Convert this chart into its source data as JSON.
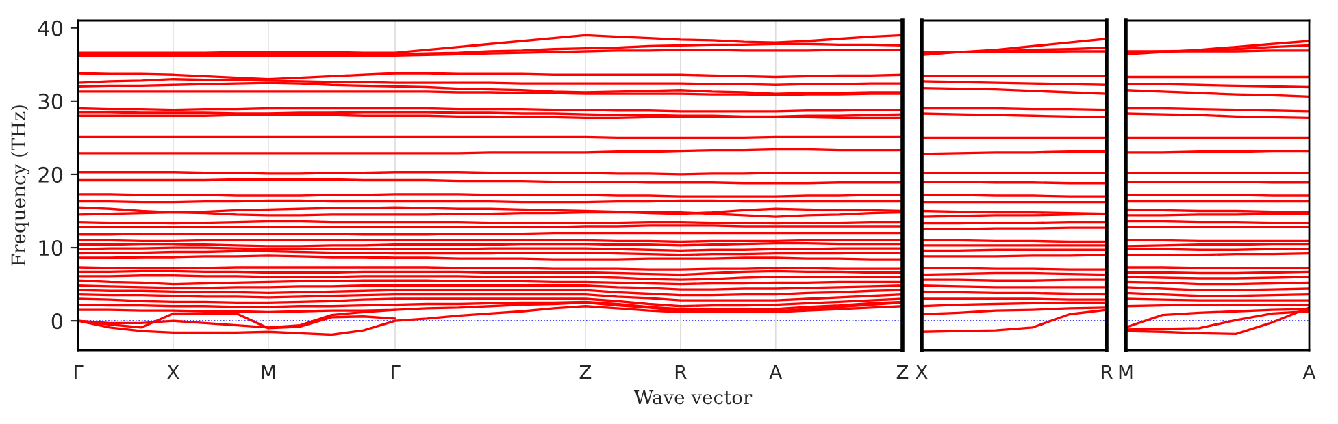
{
  "chart_data": [
    {
      "type": "line",
      "xlabel": "Wave vector",
      "ylabel": "Frequency (THz)",
      "categories": [
        "Γ",
        null,
        null,
        "X",
        null,
        null,
        "M",
        null,
        null,
        null,
        "Γ",
        null,
        null,
        null,
        null,
        null,
        "Z",
        null,
        null,
        "R",
        null,
        null,
        "A",
        null,
        null,
        null,
        "Z"
      ],
      "ylim": [
        -4,
        41
      ],
      "yticks": [
        0,
        10,
        20,
        30,
        40
      ],
      "grid": "x",
      "ref_lines": [
        {
          "axis": "y",
          "value": 0,
          "color": "#0000ff",
          "line_style": "dotted"
        }
      ],
      "series": [
        {
          "color": "#ff0000",
          "values": [
            36.6,
            36.6,
            36.6,
            36.6,
            36.6,
            36.7,
            36.7,
            36.7,
            36.7,
            36.6,
            36.6,
            37.0,
            37.4,
            37.8,
            38.2,
            38.6,
            39.0,
            38.8,
            38.6,
            38.4,
            38.3,
            38.1,
            38.0,
            38.2,
            38.5,
            38.8,
            39.0
          ]
        },
        {
          "color": "#ff0000",
          "values": [
            36.4,
            36.4,
            36.4,
            36.4,
            36.4,
            36.4,
            36.4,
            36.4,
            36.4,
            36.4,
            36.4,
            36.5,
            36.6,
            36.8,
            36.9,
            37.1,
            37.2,
            37.3,
            37.5,
            37.6,
            37.7,
            37.7,
            37.8,
            37.8,
            37.7,
            37.7,
            37.6
          ]
        },
        {
          "color": "#ff0000",
          "values": [
            36.2,
            36.2,
            36.2,
            36.2,
            36.2,
            36.2,
            36.2,
            36.2,
            36.2,
            36.2,
            36.2,
            36.3,
            36.4,
            36.5,
            36.6,
            36.7,
            36.8,
            36.9,
            36.9,
            37.0,
            37.0,
            36.9,
            36.9,
            36.9,
            37.0,
            37.0,
            37.0
          ]
        },
        {
          "color": "#ff0000",
          "values": [
            33.8,
            33.7,
            33.7,
            33.6,
            33.4,
            33.2,
            33.0,
            33.2,
            33.4,
            33.6,
            33.8,
            33.8,
            33.7,
            33.7,
            33.7,
            33.6,
            33.6,
            33.6,
            33.6,
            33.6,
            33.5,
            33.4,
            33.3,
            33.4,
            33.5,
            33.5,
            33.6
          ]
        },
        {
          "color": "#ff0000",
          "values": [
            32.5,
            32.7,
            32.8,
            33.0,
            32.9,
            32.9,
            32.8,
            32.7,
            32.6,
            32.6,
            32.5,
            32.5,
            32.5,
            32.5,
            32.4,
            32.4,
            32.4,
            32.4,
            32.4,
            32.4,
            32.3,
            32.3,
            32.2,
            32.3,
            32.3,
            32.4,
            32.4
          ]
        },
        {
          "color": "#ff0000",
          "values": [
            32.0,
            32.1,
            32.1,
            32.2,
            32.3,
            32.4,
            32.5,
            32.4,
            32.2,
            32.1,
            32.0,
            31.9,
            31.7,
            31.6,
            31.5,
            31.3,
            31.2,
            31.3,
            31.4,
            31.5,
            31.3,
            31.2,
            31.0,
            31.1,
            31.1,
            31.2,
            31.2
          ]
        },
        {
          "color": "#ff0000",
          "values": [
            31.3,
            31.3,
            31.3,
            31.3,
            31.3,
            31.3,
            31.3,
            31.3,
            31.3,
            31.3,
            31.3,
            31.3,
            31.2,
            31.2,
            31.1,
            31.1,
            31.0,
            31.0,
            31.0,
            31.0,
            30.9,
            30.9,
            30.8,
            30.9,
            30.9,
            31.0,
            31.0
          ]
        },
        {
          "color": "#ff0000",
          "values": [
            29.0,
            28.9,
            28.9,
            28.8,
            28.9,
            28.9,
            29.0,
            29.0,
            29.0,
            29.0,
            29.0,
            29.0,
            28.9,
            28.9,
            28.9,
            28.8,
            28.8,
            28.7,
            28.7,
            28.6,
            28.6,
            28.6,
            28.6,
            28.7,
            28.7,
            28.8,
            28.8
          ]
        },
        {
          "color": "#ff0000",
          "values": [
            28.5,
            28.5,
            28.4,
            28.4,
            28.4,
            28.3,
            28.3,
            28.4,
            28.4,
            28.5,
            28.5,
            28.5,
            28.4,
            28.4,
            28.3,
            28.3,
            28.2,
            28.1,
            28.1,
            28.0,
            28.0,
            27.9,
            27.9,
            28.0,
            28.0,
            28.1,
            28.2
          ]
        },
        {
          "color": "#ff0000",
          "values": [
            28.0,
            28.0,
            28.0,
            28.0,
            28.0,
            28.1,
            28.1,
            28.1,
            28.1,
            28.0,
            28.0,
            28.0,
            27.9,
            27.9,
            27.8,
            27.8,
            27.7,
            27.7,
            27.8,
            27.8,
            27.8,
            27.8,
            27.8,
            27.8,
            27.7,
            27.7,
            27.7
          ]
        },
        {
          "color": "#ff0000",
          "values": [
            25.1,
            25.1,
            25.1,
            25.1,
            25.1,
            25.1,
            25.1,
            25.1,
            25.1,
            25.1,
            25.1,
            25.1,
            25.1,
            25.1,
            25.1,
            25.1,
            25.1,
            25.0,
            25.0,
            25.0,
            25.0,
            25.0,
            25.1,
            25.1,
            25.1,
            25.1,
            25.1
          ]
        },
        {
          "color": "#ff0000",
          "values": [
            22.9,
            22.9,
            22.9,
            22.9,
            22.9,
            22.9,
            22.9,
            22.9,
            22.9,
            22.9,
            22.9,
            22.9,
            22.9,
            23.0,
            23.0,
            23.0,
            23.0,
            23.1,
            23.1,
            23.2,
            23.3,
            23.3,
            23.4,
            23.4,
            23.3,
            23.3,
            23.3
          ]
        },
        {
          "color": "#ff0000",
          "values": [
            20.3,
            20.3,
            20.3,
            20.3,
            20.2,
            20.2,
            20.1,
            20.1,
            20.2,
            20.2,
            20.3,
            20.3,
            20.3,
            20.2,
            20.2,
            20.2,
            20.2,
            20.1,
            20.1,
            20.0,
            20.1,
            20.1,
            20.2,
            20.2,
            20.2,
            20.2,
            20.2
          ]
        },
        {
          "color": "#ff0000",
          "values": [
            19.2,
            19.2,
            19.2,
            19.2,
            19.2,
            19.3,
            19.3,
            19.3,
            19.3,
            19.2,
            19.2,
            19.2,
            19.1,
            19.1,
            19.1,
            19.0,
            19.0,
            19.0,
            18.9,
            18.9,
            18.9,
            18.8,
            18.8,
            18.8,
            18.9,
            18.9,
            18.9
          ]
        },
        {
          "color": "#ff0000",
          "values": [
            17.3,
            17.3,
            17.2,
            17.2,
            17.2,
            17.1,
            17.1,
            17.1,
            17.2,
            17.2,
            17.3,
            17.3,
            17.3,
            17.2,
            17.2,
            17.2,
            17.2,
            17.1,
            17.1,
            17.0,
            17.0,
            17.0,
            17.0,
            17.1,
            17.1,
            17.2,
            17.2
          ]
        },
        {
          "color": "#ff0000",
          "values": [
            16.3,
            16.3,
            16.2,
            16.2,
            16.3,
            16.3,
            16.4,
            16.4,
            16.3,
            16.3,
            16.3,
            16.3,
            16.3,
            16.3,
            16.2,
            16.2,
            16.2,
            16.3,
            16.3,
            16.4,
            16.4,
            16.3,
            16.3,
            16.3,
            16.3,
            16.3,
            16.3
          ]
        },
        {
          "color": "#ff0000",
          "values": [
            15.5,
            15.3,
            15.0,
            14.8,
            14.9,
            15.1,
            15.2,
            15.3,
            15.4,
            15.4,
            15.5,
            15.4,
            15.3,
            15.3,
            15.2,
            15.1,
            15.0,
            14.9,
            14.7,
            14.6,
            14.8,
            15.1,
            15.3,
            15.2,
            15.1,
            15.1,
            15.0
          ]
        },
        {
          "color": "#ff0000",
          "values": [
            14.5,
            14.6,
            14.7,
            14.8,
            14.7,
            14.5,
            14.4,
            14.4,
            14.5,
            14.5,
            14.5,
            14.5,
            14.6,
            14.6,
            14.7,
            14.7,
            14.8,
            14.8,
            14.8,
            14.8,
            14.6,
            14.4,
            14.2,
            14.4,
            14.5,
            14.7,
            14.8
          ]
        },
        {
          "color": "#ff0000",
          "values": [
            13.5,
            13.4,
            13.4,
            13.3,
            13.4,
            13.5,
            13.6,
            13.6,
            13.5,
            13.5,
            13.5,
            13.5,
            13.5,
            13.4,
            13.4,
            13.4,
            13.4,
            13.4,
            13.5,
            13.5,
            13.4,
            13.4,
            13.3,
            13.4,
            13.4,
            13.5,
            13.5
          ]
        },
        {
          "color": "#ff0000",
          "values": [
            12.8,
            12.8,
            12.8,
            12.8,
            12.8,
            12.8,
            12.8,
            12.8,
            12.8,
            12.8,
            12.8,
            12.8,
            12.8,
            12.8,
            12.8,
            12.8,
            12.9,
            12.9,
            13.0,
            13.0,
            13.0,
            12.9,
            12.9,
            12.9,
            12.9,
            12.9,
            12.9
          ]
        },
        {
          "color": "#ff0000",
          "values": [
            11.8,
            11.8,
            11.9,
            11.9,
            11.9,
            11.9,
            11.9,
            11.9,
            11.9,
            11.8,
            11.8,
            11.8,
            11.9,
            11.9,
            11.9,
            12.0,
            12.0,
            12.0,
            12.0,
            12.0,
            12.0,
            12.0,
            12.0,
            12.0,
            12.0,
            12.0,
            12.0
          ]
        },
        {
          "color": "#ff0000",
          "values": [
            11.0,
            11.0,
            10.9,
            10.9,
            11.0,
            11.0,
            11.0,
            11.0,
            11.0,
            11.0,
            11.0,
            11.0,
            11.0,
            11.0,
            11.0,
            11.0,
            11.0,
            10.9,
            10.9,
            10.8,
            10.9,
            10.9,
            10.9,
            11.0,
            11.0,
            11.0,
            11.0
          ]
        },
        {
          "color": "#ff0000",
          "values": [
            10.4,
            10.4,
            10.5,
            10.5,
            10.4,
            10.3,
            10.2,
            10.2,
            10.3,
            10.3,
            10.4,
            10.4,
            10.4,
            10.4,
            10.5,
            10.5,
            10.5,
            10.4,
            10.4,
            10.3,
            10.4,
            10.5,
            10.6,
            10.6,
            10.5,
            10.5,
            10.5
          ]
        },
        {
          "color": "#ff0000",
          "values": [
            9.8,
            9.9,
            9.9,
            10.0,
            10.0,
            9.9,
            9.8,
            9.8,
            9.8,
            9.8,
            9.8,
            9.8,
            9.8,
            9.9,
            9.9,
            9.9,
            9.9,
            9.8,
            9.7,
            9.6,
            9.7,
            9.7,
            9.8,
            9.8,
            9.9,
            9.9,
            9.9
          ]
        },
        {
          "color": "#ff0000",
          "values": [
            9.2,
            9.3,
            9.3,
            9.4,
            9.4,
            9.5,
            9.5,
            9.4,
            9.3,
            9.3,
            9.2,
            9.2,
            9.2,
            9.2,
            9.3,
            9.3,
            9.3,
            9.2,
            9.1,
            9.0,
            9.1,
            9.1,
            9.2,
            9.2,
            9.2,
            9.3,
            9.3
          ]
        },
        {
          "color": "#ff0000",
          "values": [
            8.6,
            8.6,
            8.7,
            8.7,
            8.8,
            8.8,
            8.9,
            8.8,
            8.7,
            8.7,
            8.6,
            8.6,
            8.5,
            8.5,
            8.5,
            8.4,
            8.4,
            8.4,
            8.5,
            8.5,
            8.5,
            8.6,
            8.6,
            8.5,
            8.5,
            8.4,
            8.4
          ]
        },
        {
          "color": "#ff0000",
          "values": [
            7.3,
            7.2,
            7.2,
            7.2,
            7.2,
            7.3,
            7.3,
            7.3,
            7.3,
            7.3,
            7.3,
            7.3,
            7.2,
            7.2,
            7.2,
            7.1,
            7.1,
            7.1,
            7.0,
            7.0,
            7.1,
            7.1,
            7.2,
            7.2,
            7.1,
            7.1,
            7.1
          ]
        },
        {
          "color": "#ff0000",
          "values": [
            6.7,
            6.7,
            6.8,
            6.8,
            6.7,
            6.7,
            6.6,
            6.6,
            6.6,
            6.7,
            6.7,
            6.7,
            6.7,
            6.6,
            6.6,
            6.6,
            6.6,
            6.5,
            6.4,
            6.3,
            6.5,
            6.7,
            6.8,
            6.7,
            6.7,
            6.6,
            6.6
          ]
        },
        {
          "color": "#ff0000",
          "values": [
            6.1,
            6.1,
            6.2,
            6.2,
            6.1,
            6.1,
            6.0,
            6.0,
            6.0,
            6.1,
            6.1,
            6.1,
            6.1,
            6.0,
            6.0,
            6.0,
            6.0,
            5.9,
            5.7,
            5.6,
            5.7,
            5.9,
            6.0,
            6.0,
            6.0,
            6.0,
            6.0
          ]
        },
        {
          "color": "#ff0000",
          "values": [
            5.5,
            5.3,
            5.2,
            5.0,
            5.1,
            5.2,
            5.3,
            5.4,
            5.4,
            5.5,
            5.5,
            5.5,
            5.4,
            5.4,
            5.4,
            5.3,
            5.3,
            5.2,
            5.1,
            5.0,
            5.1,
            5.1,
            5.2,
            5.2,
            5.3,
            5.3,
            5.3
          ]
        },
        {
          "color": "#ff0000",
          "values": [
            4.8,
            4.7,
            4.6,
            4.5,
            4.5,
            4.6,
            4.6,
            4.7,
            4.7,
            4.8,
            4.8,
            4.8,
            4.8,
            4.8,
            4.8,
            4.8,
            4.8,
            4.6,
            4.5,
            4.3,
            4.3,
            4.4,
            4.4,
            4.5,
            4.6,
            4.7,
            4.8
          ]
        },
        {
          "color": "#ff0000",
          "values": [
            4.2,
            4.1,
            4.1,
            4.0,
            3.9,
            3.9,
            3.8,
            3.9,
            4.0,
            4.1,
            4.2,
            4.2,
            4.2,
            4.2,
            4.2,
            4.2,
            4.2,
            3.9,
            3.7,
            3.5,
            3.5,
            3.6,
            3.6,
            3.8,
            3.9,
            4.1,
            4.2
          ]
        },
        {
          "color": "#ff0000",
          "values": [
            3.6,
            3.5,
            3.5,
            3.4,
            3.3,
            3.3,
            3.2,
            3.3,
            3.4,
            3.5,
            3.6,
            3.6,
            3.6,
            3.6,
            3.6,
            3.6,
            3.6,
            3.3,
            3.1,
            2.8,
            2.8,
            2.8,
            2.8,
            3.0,
            3.2,
            3.4,
            3.6
          ]
        },
        {
          "color": "#ff0000",
          "values": [
            3.0,
            2.9,
            2.7,
            2.6,
            2.6,
            2.5,
            2.5,
            2.6,
            2.7,
            2.9,
            3.0,
            3.0,
            3.0,
            3.0,
            3.0,
            3.0,
            3.0,
            2.7,
            2.3,
            2.0,
            2.1,
            2.1,
            2.2,
            2.4,
            2.6,
            2.8,
            3.0
          ]
        },
        {
          "color": "#ff0000",
          "values": [
            2.2,
            2.1,
            2.1,
            2.0,
            2.0,
            1.9,
            1.9,
            2.0,
            2.0,
            2.1,
            2.2,
            2.3,
            2.3,
            2.4,
            2.5,
            2.5,
            2.6,
            2.3,
            1.9,
            1.6,
            1.6,
            1.6,
            1.6,
            1.9,
            2.1,
            2.4,
            2.6
          ]
        },
        {
          "color": "#ff0000",
          "values": [
            1.5,
            1.5,
            1.4,
            1.4,
            1.3,
            1.3,
            1.2,
            1.3,
            1.4,
            1.4,
            1.5,
            1.7,
            1.8,
            2.0,
            2.2,
            2.3,
            2.5,
            2.1,
            1.8,
            1.4,
            1.4,
            1.3,
            1.3,
            1.6,
            1.9,
            2.2,
            2.5
          ]
        },
        {
          "color": "#ff0000",
          "values": [
            0,
            -0.9,
            -1.4,
            -1.6,
            -1.6,
            -1.6,
            -1.5,
            -1.7,
            -1.9,
            -1.3,
            0,
            0.3,
            0.7,
            1.0,
            1.3,
            1.7,
            2.0,
            1.7,
            1.4,
            1.2,
            1.2,
            1.2,
            1.2,
            1.4,
            1.6,
            1.8,
            2.0
          ]
        },
        {
          "color": "#ff0000",
          "values": [
            0,
            -0.5,
            -0.9,
            1.0,
            1.0,
            1.0,
            -1.0,
            -0.8,
            0.5,
            0.6,
            0.3,
            null,
            null,
            null,
            null,
            null,
            null,
            null,
            null,
            null,
            null,
            null,
            null,
            null,
            null,
            null,
            null
          ]
        },
        {
          "color": "#ff0000",
          "values": [
            0,
            -0.3,
            -0.3,
            0.0,
            -0.3,
            -0.6,
            -0.9,
            -0.6,
            0.8,
            1.2,
            1.5,
            null,
            null,
            null,
            null,
            null,
            null,
            null,
            null,
            null,
            null,
            null,
            null,
            null,
            null,
            null,
            null
          ]
        }
      ]
    },
    {
      "type": "line",
      "categories": [
        "X",
        null,
        null,
        null,
        null,
        "R"
      ],
      "ylim": [
        -4,
        41
      ],
      "yticks": [
        0,
        10,
        20,
        30,
        40
      ],
      "tick_labels": "x",
      "ref_lines": [
        {
          "axis": "y",
          "value": 0,
          "color": "#0000ff",
          "line_style": "dotted"
        }
      ],
      "series": [
        {
          "color": "#ff0000",
          "values": [
            36.3,
            36.7,
            37.0,
            37.5,
            38.0,
            38.5
          ]
        },
        {
          "color": "#ff0000",
          "values": [
            36.5,
            36.7,
            36.8,
            37.0,
            37.1,
            37.3
          ]
        },
        {
          "color": "#ff0000",
          "values": [
            36.7,
            36.7,
            36.7,
            36.7,
            36.8,
            36.8
          ]
        },
        {
          "color": "#ff0000",
          "values": [
            33.4,
            33.4,
            33.4,
            33.4,
            33.4,
            33.4
          ]
        },
        {
          "color": "#ff0000",
          "values": [
            32.7,
            32.6,
            32.5,
            32.4,
            32.3,
            32.2
          ]
        },
        {
          "color": "#ff0000",
          "values": [
            31.8,
            31.7,
            31.6,
            31.4,
            31.2,
            31.0
          ]
        },
        {
          "color": "#ff0000",
          "values": [
            29.0,
            29.0,
            29.0,
            28.9,
            28.9,
            28.8
          ]
        },
        {
          "color": "#ff0000",
          "values": [
            28.3,
            28.2,
            28.1,
            28.0,
            27.9,
            27.8
          ]
        },
        {
          "color": "#ff0000",
          "values": [
            25.0,
            25.0,
            25.0,
            25.0,
            25.0,
            25.0
          ]
        },
        {
          "color": "#ff0000",
          "values": [
            22.8,
            22.9,
            23.0,
            23.0,
            23.1,
            23.1
          ]
        },
        {
          "color": "#ff0000",
          "values": [
            20.2,
            20.2,
            20.2,
            20.2,
            20.2,
            20.2
          ]
        },
        {
          "color": "#ff0000",
          "values": [
            19.0,
            19.0,
            18.9,
            18.9,
            18.8,
            18.8
          ]
        },
        {
          "color": "#ff0000",
          "values": [
            17.2,
            17.2,
            17.1,
            17.1,
            17.0,
            17.0
          ]
        },
        {
          "color": "#ff0000",
          "values": [
            16.2,
            16.2,
            16.2,
            16.2,
            16.2,
            16.2
          ]
        },
        {
          "color": "#ff0000",
          "values": [
            15.0,
            14.9,
            14.8,
            14.8,
            14.7,
            14.6
          ]
        },
        {
          "color": "#ff0000",
          "values": [
            14.2,
            14.3,
            14.4,
            14.4,
            14.5,
            14.6
          ]
        },
        {
          "color": "#ff0000",
          "values": [
            13.3,
            13.3,
            13.4,
            13.4,
            13.5,
            13.5
          ]
        },
        {
          "color": "#ff0000",
          "values": [
            12.5,
            12.5,
            12.6,
            12.6,
            12.7,
            12.7
          ]
        },
        {
          "color": "#ff0000",
          "values": [
            11.0,
            11.0,
            10.9,
            10.9,
            10.8,
            10.8
          ]
        },
        {
          "color": "#ff0000",
          "values": [
            10.3,
            10.3,
            10.3,
            10.3,
            10.3,
            10.3
          ]
        },
        {
          "color": "#ff0000",
          "values": [
            9.6,
            9.6,
            9.7,
            9.7,
            9.7,
            9.7
          ]
        },
        {
          "color": "#ff0000",
          "values": [
            8.8,
            8.8,
            8.8,
            8.9,
            8.9,
            9.0
          ]
        },
        {
          "color": "#ff0000",
          "values": [
            7.2,
            7.2,
            7.1,
            7.1,
            7.0,
            7.0
          ]
        },
        {
          "color": "#ff0000",
          "values": [
            6.3,
            6.4,
            6.5,
            6.5,
            6.4,
            6.3
          ]
        },
        {
          "color": "#ff0000",
          "values": [
            5.6,
            5.6,
            5.5,
            5.5,
            5.6,
            5.6
          ]
        },
        {
          "color": "#ff0000",
          "values": [
            4.8,
            4.7,
            4.6,
            4.6,
            4.6,
            4.6
          ]
        },
        {
          "color": "#ff0000",
          "values": [
            4.0,
            3.9,
            3.8,
            3.8,
            3.7,
            3.6
          ]
        },
        {
          "color": "#ff0000",
          "values": [
            3.0,
            3.0,
            3.0,
            3.0,
            2.9,
            2.9
          ]
        },
        {
          "color": "#ff0000",
          "values": [
            2.0,
            2.2,
            2.3,
            2.4,
            2.5,
            2.5
          ]
        },
        {
          "color": "#ff0000",
          "values": [
            0.9,
            1.1,
            1.4,
            1.5,
            1.7,
            1.8
          ]
        },
        {
          "color": "#ff0000",
          "values": [
            -1.5,
            -1.4,
            -1.3,
            -0.9,
            0.9,
            1.5
          ]
        }
      ]
    },
    {
      "type": "line",
      "categories": [
        "M",
        null,
        null,
        null,
        null,
        "A"
      ],
      "ylim": [
        -4,
        41
      ],
      "yticks": [
        0,
        10,
        20,
        30,
        40
      ],
      "tick_labels": "x",
      "ref_lines": [
        {
          "axis": "y",
          "value": 0,
          "color": "#0000ff",
          "line_style": "dotted"
        }
      ],
      "series": [
        {
          "color": "#ff0000",
          "values": [
            36.4,
            36.7,
            37.0,
            37.4,
            37.8,
            38.2
          ]
        },
        {
          "color": "#ff0000",
          "values": [
            36.6,
            36.8,
            36.9,
            37.1,
            37.4,
            37.6
          ]
        },
        {
          "color": "#ff0000",
          "values": [
            36.8,
            36.8,
            36.8,
            36.8,
            36.9,
            36.9
          ]
        },
        {
          "color": "#ff0000",
          "values": [
            33.3,
            33.3,
            33.3,
            33.3,
            33.3,
            33.3
          ]
        },
        {
          "color": "#ff0000",
          "values": [
            32.3,
            32.3,
            32.2,
            32.1,
            32.0,
            31.9
          ]
        },
        {
          "color": "#ff0000",
          "values": [
            31.5,
            31.3,
            31.1,
            30.9,
            30.8,
            30.6
          ]
        },
        {
          "color": "#ff0000",
          "values": [
            29.0,
            29.0,
            28.9,
            28.8,
            28.7,
            28.6
          ]
        },
        {
          "color": "#ff0000",
          "values": [
            28.3,
            28.2,
            28.1,
            27.9,
            27.8,
            27.7
          ]
        },
        {
          "color": "#ff0000",
          "values": [
            25.0,
            25.0,
            25.0,
            25.0,
            25.0,
            25.0
          ]
        },
        {
          "color": "#ff0000",
          "values": [
            23.0,
            23.0,
            23.1,
            23.1,
            23.2,
            23.2
          ]
        },
        {
          "color": "#ff0000",
          "values": [
            20.2,
            20.2,
            20.2,
            20.2,
            20.2,
            20.2
          ]
        },
        {
          "color": "#ff0000",
          "values": [
            19.0,
            19.0,
            19.0,
            19.0,
            18.9,
            18.9
          ]
        },
        {
          "color": "#ff0000",
          "values": [
            17.2,
            17.2,
            17.2,
            17.2,
            17.1,
            17.1
          ]
        },
        {
          "color": "#ff0000",
          "values": [
            16.3,
            16.3,
            16.3,
            16.3,
            16.3,
            16.3
          ]
        },
        {
          "color": "#ff0000",
          "values": [
            15.2,
            15.1,
            15.0,
            15.0,
            14.9,
            14.8
          ]
        },
        {
          "color": "#ff0000",
          "values": [
            14.4,
            14.4,
            14.5,
            14.5,
            14.6,
            14.6
          ]
        },
        {
          "color": "#ff0000",
          "values": [
            13.6,
            13.6,
            13.5,
            13.5,
            13.4,
            13.4
          ]
        },
        {
          "color": "#ff0000",
          "values": [
            12.8,
            12.8,
            12.8,
            12.8,
            12.8,
            12.8
          ]
        },
        {
          "color": "#ff0000",
          "values": [
            11.0,
            11.0,
            10.9,
            10.9,
            10.9,
            10.9
          ]
        },
        {
          "color": "#ff0000",
          "values": [
            10.2,
            10.3,
            10.4,
            10.4,
            10.5,
            10.5
          ]
        },
        {
          "color": "#ff0000",
          "values": [
            9.8,
            9.8,
            9.7,
            9.7,
            9.8,
            9.8
          ]
        },
        {
          "color": "#ff0000",
          "values": [
            9.0,
            9.0,
            9.0,
            9.1,
            9.1,
            9.2
          ]
        },
        {
          "color": "#ff0000",
          "values": [
            7.3,
            7.3,
            7.2,
            7.2,
            7.2,
            7.2
          ]
        },
        {
          "color": "#ff0000",
          "values": [
            6.6,
            6.6,
            6.5,
            6.5,
            6.6,
            6.7
          ]
        },
        {
          "color": "#ff0000",
          "values": [
            6.0,
            5.9,
            5.8,
            5.8,
            5.9,
            6.0
          ]
        },
        {
          "color": "#ff0000",
          "values": [
            5.3,
            5.2,
            5.0,
            5.0,
            5.1,
            5.2
          ]
        },
        {
          "color": "#ff0000",
          "values": [
            4.6,
            4.4,
            4.2,
            4.2,
            4.3,
            4.4
          ]
        },
        {
          "color": "#ff0000",
          "values": [
            3.8,
            3.6,
            3.4,
            3.4,
            3.5,
            3.6
          ]
        },
        {
          "color": "#ff0000",
          "values": [
            3.0,
            2.9,
            2.8,
            2.8,
            2.8,
            2.8
          ]
        },
        {
          "color": "#ff0000",
          "values": [
            2.0,
            2.1,
            2.2,
            2.2,
            2.2,
            2.2
          ]
        },
        {
          "color": "#ff0000",
          "values": [
            -0.9,
            0.8,
            1.1,
            1.3,
            1.5,
            1.6
          ]
        },
        {
          "color": "#ff0000",
          "values": [
            -1.2,
            -1.1,
            -1.0,
            0.1,
            1.0,
            1.3
          ]
        },
        {
          "color": "#ff0000",
          "values": [
            -1.4,
            -1.5,
            -1.7,
            -1.8,
            -0.2,
            1.8
          ]
        }
      ]
    }
  ]
}
